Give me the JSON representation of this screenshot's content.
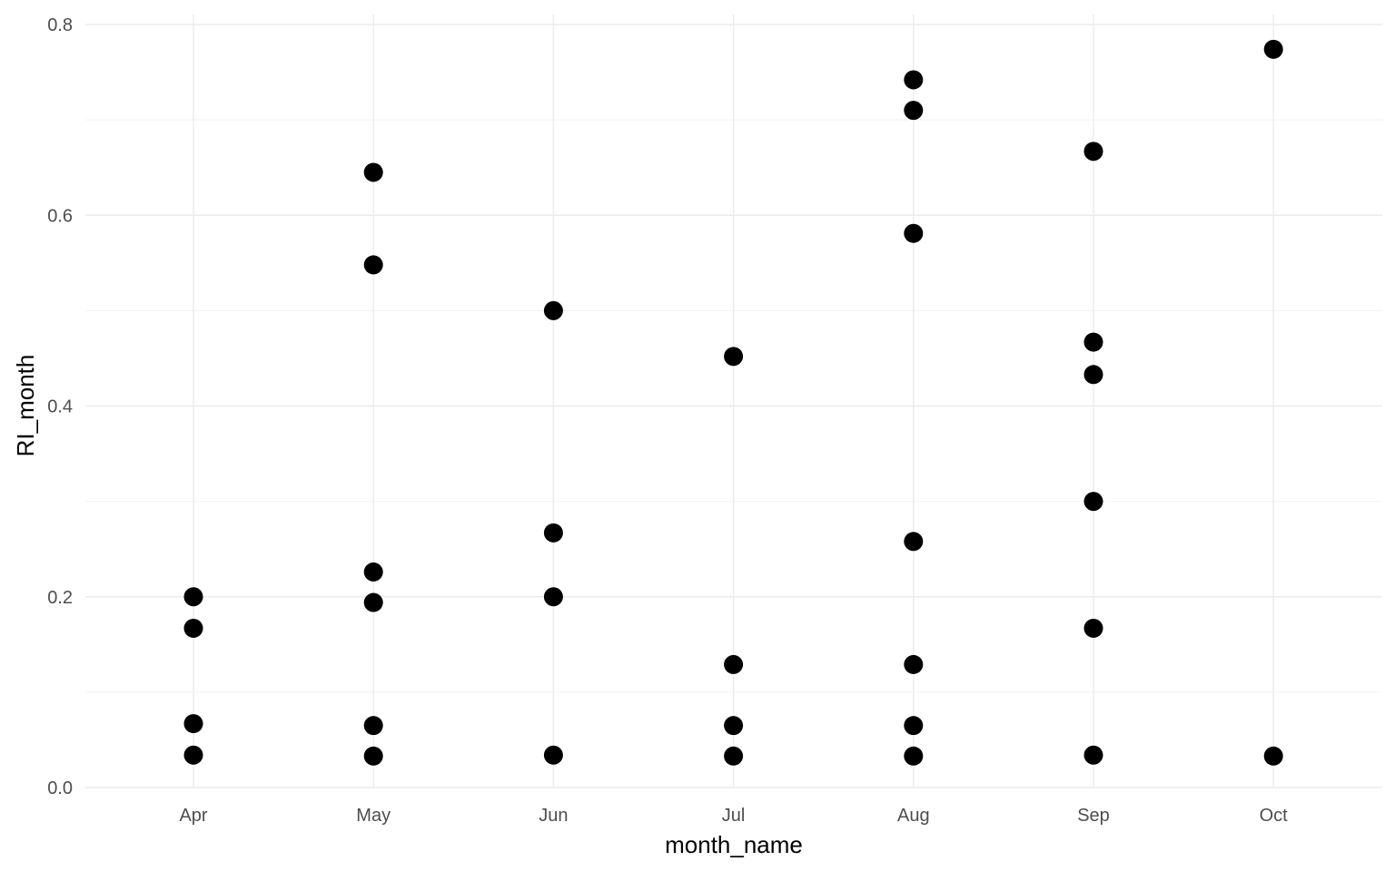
{
  "chart_data": {
    "type": "scatter",
    "xlabel": "month_name",
    "ylabel": "RI_month",
    "categories": [
      "Apr",
      "May",
      "Jun",
      "Jul",
      "Aug",
      "Sep",
      "Oct"
    ],
    "ylim": [
      0,
      0.8
    ],
    "y_ticks": [
      "0.0",
      "0.2",
      "0.4",
      "0.6",
      "0.8"
    ],
    "y_tick_values": [
      0,
      0.2,
      0.4,
      0.6,
      0.8
    ],
    "grid": true,
    "theme": "minimal",
    "point_color": "#000000",
    "points": [
      {
        "x": "Apr",
        "y": 0.2
      },
      {
        "x": "Apr",
        "y": 0.167
      },
      {
        "x": "Apr",
        "y": 0.067
      },
      {
        "x": "Apr",
        "y": 0.034
      },
      {
        "x": "May",
        "y": 0.645
      },
      {
        "x": "May",
        "y": 0.548
      },
      {
        "x": "May",
        "y": 0.226
      },
      {
        "x": "May",
        "y": 0.194
      },
      {
        "x": "May",
        "y": 0.065
      },
      {
        "x": "May",
        "y": 0.033
      },
      {
        "x": "Jun",
        "y": 0.5
      },
      {
        "x": "Jun",
        "y": 0.267
      },
      {
        "x": "Jun",
        "y": 0.2
      },
      {
        "x": "Jun",
        "y": 0.034
      },
      {
        "x": "Jul",
        "y": 0.452
      },
      {
        "x": "Jul",
        "y": 0.129
      },
      {
        "x": "Jul",
        "y": 0.065
      },
      {
        "x": "Jul",
        "y": 0.033
      },
      {
        "x": "Aug",
        "y": 0.742
      },
      {
        "x": "Aug",
        "y": 0.71
      },
      {
        "x": "Aug",
        "y": 0.581
      },
      {
        "x": "Aug",
        "y": 0.258
      },
      {
        "x": "Aug",
        "y": 0.129
      },
      {
        "x": "Aug",
        "y": 0.065
      },
      {
        "x": "Aug",
        "y": 0.033
      },
      {
        "x": "Sep",
        "y": 0.667
      },
      {
        "x": "Sep",
        "y": 0.467
      },
      {
        "x": "Sep",
        "y": 0.433
      },
      {
        "x": "Sep",
        "y": 0.3
      },
      {
        "x": "Sep",
        "y": 0.167
      },
      {
        "x": "Sep",
        "y": 0.034
      },
      {
        "x": "Oct",
        "y": 0.774
      },
      {
        "x": "Oct",
        "y": 0.033
      }
    ]
  }
}
